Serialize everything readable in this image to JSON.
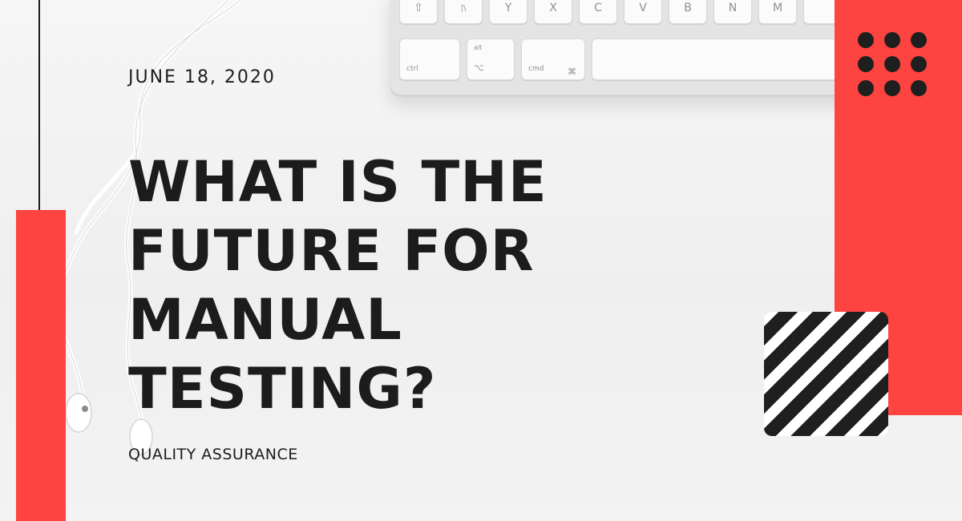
{
  "post": {
    "date": "JUNE 18, 2020",
    "headline_lines": [
      "WHAT IS THE",
      "FUTURE FOR",
      "MANUAL",
      "TESTING?"
    ],
    "category": "QUALITY ASSURANCE"
  },
  "keyboard": {
    "top_row": [
      "⇧",
      "|\\",
      "Y",
      "X",
      "C",
      "V",
      "B",
      "N",
      "M"
    ],
    "bottom_row": {
      "ctrl": "ctrl",
      "alt_top": "alt",
      "alt_symbol": "⌥",
      "cmd": "cmd",
      "cmd_symbol": "⌘"
    }
  },
  "colors": {
    "accent_red": "#fe4441",
    "ink": "#1c1c1c",
    "background": "#f2f2f2"
  },
  "icons": [
    "dot-grid-icon",
    "diagonal-stripes-icon"
  ]
}
